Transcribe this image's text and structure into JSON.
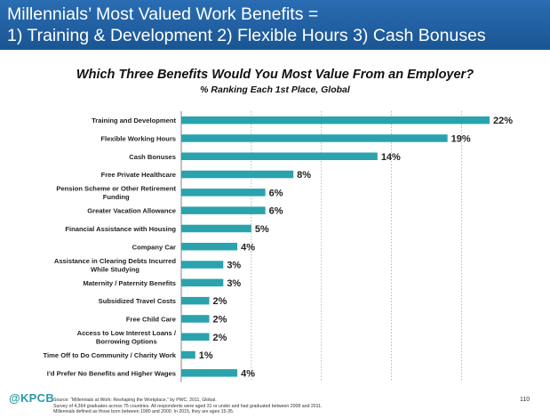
{
  "header": {
    "line1": "Millennials’ Most Valued Work Benefits =",
    "line2": "1) Training & Development  2) Flexible Hours  3) Cash Bonuses"
  },
  "chart_data": {
    "type": "bar",
    "orientation": "horizontal",
    "title": "Which Three Benefits Would You Most Value From an Employer?",
    "subtitle": "% Ranking Each 1st Place, Global",
    "categories": [
      [
        "Training and Development"
      ],
      [
        "Flexible Working Hours"
      ],
      [
        "Cash Bonuses"
      ],
      [
        "Free Private Healthcare"
      ],
      [
        "Pension Scheme or Other Retirement",
        "Funding"
      ],
      [
        "Greater Vacation Allowance"
      ],
      [
        "Financial Assistance with Housing"
      ],
      [
        "Company Car"
      ],
      [
        "Assistance in Clearing Debts Incurred",
        "While Studying"
      ],
      [
        "Maternity / Paternity Benefits"
      ],
      [
        "Subsidized Travel Costs"
      ],
      [
        "Free Child Care"
      ],
      [
        "Access to Low Interest Loans /",
        "Borrowing Options"
      ],
      [
        "Time Off to Do Community / Charity Work"
      ],
      [
        "I’d Prefer No Benefits and Higher Wages"
      ]
    ],
    "values": [
      22,
      19,
      14,
      8,
      6,
      6,
      5,
      4,
      3,
      3,
      2,
      2,
      2,
      1,
      4
    ],
    "value_labels": [
      "22%",
      "19%",
      "14%",
      "8%",
      "6%",
      "6%",
      "5%",
      "4%",
      "3%",
      "3%",
      "2%",
      "2%",
      "2%",
      "1%",
      "4%"
    ],
    "xlim": [
      0,
      22
    ],
    "grid": "vertical dashed",
    "bar_color": "#2aa3ad"
  },
  "footer": {
    "logo": "@KPCB",
    "source_lines": [
      "Source: “Millennials at Work: Reshaping the Workplace,” by PWC, 2011, Global.",
      "Survey of 4,364 graduates across 75 countries. All respondents were aged 31 or under and had graduated between 2008 and 2011.",
      "Millennials defined as those born between 1980 and 2000. In 2015, they are ages 15-35."
    ],
    "page_number": "110"
  }
}
